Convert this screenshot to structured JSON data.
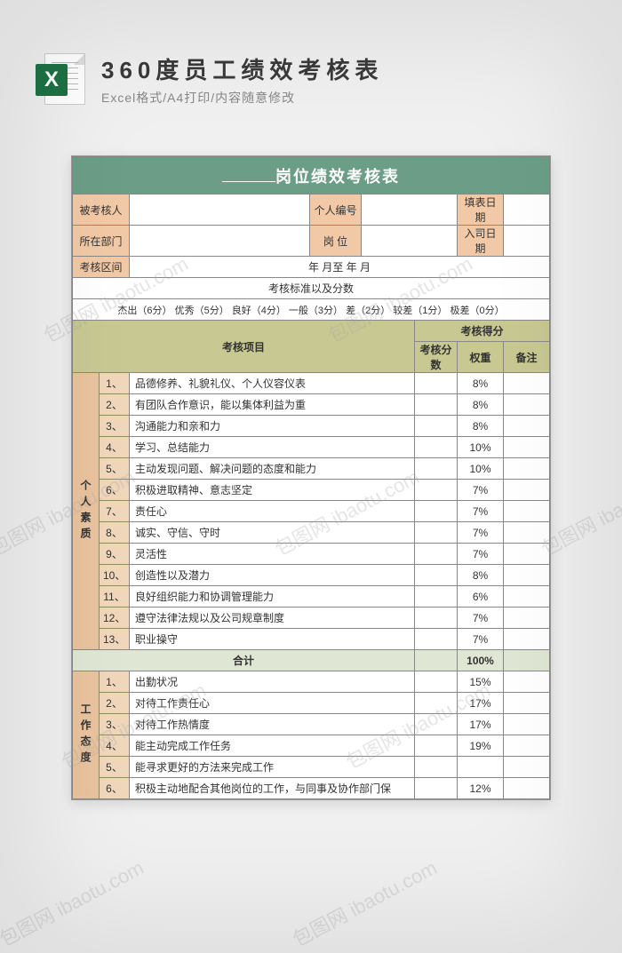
{
  "header": {
    "title": "360度员工绩效考核表",
    "subtitle": "Excel格式/A4打印/内容随意修改",
    "icon_letter": "X",
    "icon_bg": "#1f7246"
  },
  "doc": {
    "title_suffix": "岗位绩效考核表",
    "meta_labels": {
      "assessee": "被考核人",
      "personal_id": "个人编号",
      "fill_date": "填表日期",
      "department": "所在部门",
      "position": "岗 位",
      "join_date": "入司日期",
      "period": "考核区间",
      "period_value": "年    月至    年    月"
    },
    "criteria_title": "考核标准以及分数",
    "criteria_scale": "杰出（6分） 优秀（5分） 良好（4分） 一般（3分） 差（2分） 较差（1分） 极差（0分）",
    "columns": {
      "item": "考核项目",
      "score_group": "考核得分",
      "score": "考核分数",
      "weight": "权重",
      "remark": "备注"
    },
    "section1_name": "个人素质",
    "section1": [
      {
        "n": "1、",
        "t": "品德修养、礼貌礼仪、个人仪容仪表",
        "w": "8%"
      },
      {
        "n": "2、",
        "t": "有团队合作意识，能以集体利益为重",
        "w": "8%"
      },
      {
        "n": "3、",
        "t": "沟通能力和亲和力",
        "w": "8%"
      },
      {
        "n": "4、",
        "t": "学习、总结能力",
        "w": "10%"
      },
      {
        "n": "5、",
        "t": "主动发现问题、解决问题的态度和能力",
        "w": "10%"
      },
      {
        "n": "6、",
        "t": "积极进取精神、意志坚定",
        "w": "7%"
      },
      {
        "n": "7、",
        "t": "责任心",
        "w": "7%"
      },
      {
        "n": "8、",
        "t": "诚实、守信、守时",
        "w": "7%"
      },
      {
        "n": "9、",
        "t": "灵活性",
        "w": "7%"
      },
      {
        "n": "10、",
        "t": "创造性以及潜力",
        "w": "8%"
      },
      {
        "n": "11、",
        "t": "良好组织能力和协调管理能力",
        "w": "6%"
      },
      {
        "n": "12、",
        "t": "遵守法律法规以及公司规章制度",
        "w": "7%"
      },
      {
        "n": "13、",
        "t": "职业操守",
        "w": "7%"
      }
    ],
    "subtotal_label": "合计",
    "subtotal_weight": "100%",
    "section2_name": "工作态度",
    "section2": [
      {
        "n": "1、",
        "t": "出勤状况",
        "w": "15%"
      },
      {
        "n": "2、",
        "t": "对待工作责任心",
        "w": "17%"
      },
      {
        "n": "3、",
        "t": "对待工作热情度",
        "w": "17%"
      },
      {
        "n": "4、",
        "t": "能主动完成工作任务",
        "w": "19%"
      },
      {
        "n": "5、",
        "t": "能寻求更好的方法来完成工作",
        "w": ""
      },
      {
        "n": "6、",
        "t": "积极主动地配合其他岗位的工作，与同事及协作部门保",
        "w": "12%"
      }
    ]
  },
  "colors": {
    "header_green": "#6b9d87",
    "peach": "#f2c9a6",
    "peach_dark": "#e9c39d",
    "olive": "#c8c893",
    "sage": "#dfe6d4",
    "num_bg": "#f0d6bb",
    "border": "#888888"
  },
  "watermark_text": "包图网 ibaotu.com"
}
